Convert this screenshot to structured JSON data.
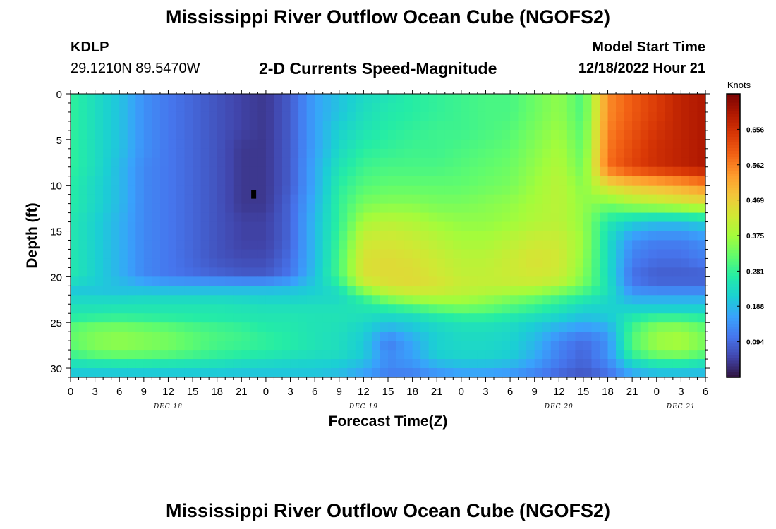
{
  "header": {
    "title": "Mississippi River Outflow Ocean Cube (NGOFS2)",
    "station_id": "KDLP",
    "station_coords": "29.1210N  89.5470W",
    "subtitle": "2-D Currents Speed-Magnitude",
    "model_start_label": "Model Start Time",
    "model_start_value": "12/18/2022 Hour 21"
  },
  "footer": {
    "title": "Mississippi River Outflow Ocean Cube (NGOFS2)"
  },
  "colors": {
    "colormap": [
      "#30123b",
      "#4145ab",
      "#4675ed",
      "#39a2fc",
      "#1bcfd4",
      "#24eca6",
      "#61fc6c",
      "#a4fc3b",
      "#d1e834",
      "#f3c63a",
      "#fe9b2d",
      "#f36315",
      "#d93806",
      "#b11901",
      "#7a0403"
    ],
    "marker": "#000000"
  },
  "chart_data": {
    "type": "heatmap",
    "xlabel": "Forecast Time(Z)",
    "ylabel": "Depth (ft)",
    "x_ticks": [
      "0",
      "3",
      "6",
      "9",
      "12",
      "15",
      "18",
      "21",
      "0",
      "3",
      "6",
      "9",
      "12",
      "15",
      "18",
      "21",
      "0",
      "3",
      "6",
      "9",
      "12",
      "15",
      "18",
      "21",
      "0",
      "3",
      "6"
    ],
    "date_labels": [
      {
        "text": "DEC 18",
        "at_hour": 12
      },
      {
        "text": "DEC 19",
        "at_hour": 36
      },
      {
        "text": "DEC 20",
        "at_hour": 60
      },
      {
        "text": "DEC 21",
        "at_hour": 75
      }
    ],
    "xlim": [
      0,
      78
    ],
    "y_ticks": [
      0,
      5,
      10,
      15,
      20,
      25,
      30
    ],
    "ylim": [
      0,
      31
    ],
    "colorbar": {
      "label": "Knots",
      "ticks": [
        0.094,
        0.188,
        0.281,
        0.375,
        0.469,
        0.562,
        0.656
      ],
      "range": [
        0,
        0.75
      ]
    },
    "marker": {
      "hour": 22.5,
      "depth": 11
    },
    "depth_levels": [
      0,
      2,
      4,
      6,
      8,
      10,
      12,
      14,
      16,
      18,
      20,
      21,
      22,
      23,
      24,
      25,
      26,
      27,
      28,
      29,
      30,
      31
    ],
    "hours": [
      0,
      3,
      6,
      9,
      12,
      15,
      18,
      21,
      24,
      27,
      30,
      33,
      36,
      39,
      42,
      45,
      48,
      51,
      54,
      57,
      60,
      63,
      66,
      69,
      72,
      75,
      78
    ],
    "values": [
      [
        0.28,
        0.24,
        0.2,
        0.14,
        0.11,
        0.09,
        0.07,
        0.05,
        0.04,
        0.08,
        0.16,
        0.2,
        0.23,
        0.25,
        0.27,
        0.28,
        0.29,
        0.3,
        0.3,
        0.33,
        0.36,
        0.3,
        0.55,
        0.6,
        0.64,
        0.68,
        0.7
      ],
      [
        0.28,
        0.24,
        0.2,
        0.14,
        0.11,
        0.09,
        0.07,
        0.05,
        0.04,
        0.08,
        0.16,
        0.2,
        0.24,
        0.26,
        0.27,
        0.28,
        0.29,
        0.3,
        0.3,
        0.33,
        0.36,
        0.3,
        0.55,
        0.6,
        0.64,
        0.68,
        0.7
      ],
      [
        0.28,
        0.24,
        0.2,
        0.14,
        0.11,
        0.09,
        0.07,
        0.05,
        0.04,
        0.08,
        0.16,
        0.22,
        0.25,
        0.27,
        0.28,
        0.29,
        0.29,
        0.3,
        0.31,
        0.34,
        0.37,
        0.31,
        0.56,
        0.61,
        0.65,
        0.68,
        0.7
      ],
      [
        0.28,
        0.24,
        0.2,
        0.14,
        0.11,
        0.09,
        0.07,
        0.04,
        0.04,
        0.08,
        0.16,
        0.23,
        0.27,
        0.28,
        0.29,
        0.29,
        0.3,
        0.31,
        0.32,
        0.35,
        0.38,
        0.32,
        0.57,
        0.62,
        0.66,
        0.68,
        0.7
      ],
      [
        0.28,
        0.24,
        0.19,
        0.13,
        0.11,
        0.09,
        0.07,
        0.04,
        0.04,
        0.08,
        0.17,
        0.25,
        0.29,
        0.3,
        0.3,
        0.3,
        0.31,
        0.32,
        0.33,
        0.36,
        0.39,
        0.33,
        0.58,
        0.63,
        0.66,
        0.68,
        0.7
      ],
      [
        0.27,
        0.23,
        0.19,
        0.13,
        0.11,
        0.09,
        0.07,
        0.04,
        0.04,
        0.08,
        0.17,
        0.27,
        0.31,
        0.32,
        0.32,
        0.32,
        0.32,
        0.33,
        0.34,
        0.37,
        0.4,
        0.35,
        0.45,
        0.48,
        0.5,
        0.52,
        0.55
      ],
      [
        0.27,
        0.23,
        0.19,
        0.13,
        0.11,
        0.09,
        0.07,
        0.04,
        0.04,
        0.09,
        0.18,
        0.28,
        0.34,
        0.35,
        0.35,
        0.34,
        0.34,
        0.35,
        0.36,
        0.38,
        0.4,
        0.36,
        0.34,
        0.38,
        0.4,
        0.42,
        0.44
      ],
      [
        0.26,
        0.22,
        0.18,
        0.13,
        0.11,
        0.09,
        0.07,
        0.05,
        0.05,
        0.09,
        0.19,
        0.28,
        0.38,
        0.4,
        0.39,
        0.37,
        0.36,
        0.36,
        0.37,
        0.39,
        0.4,
        0.36,
        0.26,
        0.22,
        0.2,
        0.2,
        0.22
      ],
      [
        0.26,
        0.22,
        0.18,
        0.13,
        0.11,
        0.09,
        0.07,
        0.05,
        0.05,
        0.09,
        0.19,
        0.29,
        0.42,
        0.43,
        0.42,
        0.4,
        0.38,
        0.38,
        0.4,
        0.42,
        0.42,
        0.37,
        0.24,
        0.14,
        0.12,
        0.12,
        0.14
      ],
      [
        0.26,
        0.22,
        0.18,
        0.13,
        0.11,
        0.09,
        0.07,
        0.06,
        0.06,
        0.1,
        0.19,
        0.3,
        0.44,
        0.45,
        0.44,
        0.42,
        0.4,
        0.4,
        0.42,
        0.44,
        0.43,
        0.36,
        0.24,
        0.12,
        0.1,
        0.1,
        0.12
      ],
      [
        0.26,
        0.22,
        0.18,
        0.13,
        0.11,
        0.1,
        0.09,
        0.08,
        0.08,
        0.11,
        0.2,
        0.3,
        0.44,
        0.45,
        0.45,
        0.43,
        0.41,
        0.41,
        0.42,
        0.43,
        0.42,
        0.35,
        0.24,
        0.1,
        0.08,
        0.08,
        0.08
      ],
      [
        0.22,
        0.21,
        0.2,
        0.19,
        0.18,
        0.18,
        0.18,
        0.18,
        0.18,
        0.19,
        0.21,
        0.26,
        0.4,
        0.44,
        0.45,
        0.44,
        0.42,
        0.41,
        0.41,
        0.41,
        0.39,
        0.33,
        0.25,
        0.12,
        0.1,
        0.1,
        0.1
      ],
      [
        0.2,
        0.2,
        0.2,
        0.21,
        0.21,
        0.21,
        0.21,
        0.21,
        0.21,
        0.21,
        0.22,
        0.23,
        0.3,
        0.38,
        0.4,
        0.4,
        0.39,
        0.38,
        0.36,
        0.34,
        0.31,
        0.28,
        0.24,
        0.16,
        0.16,
        0.16,
        0.16
      ],
      [
        0.26,
        0.26,
        0.26,
        0.26,
        0.26,
        0.26,
        0.26,
        0.25,
        0.24,
        0.24,
        0.24,
        0.24,
        0.26,
        0.3,
        0.33,
        0.35,
        0.36,
        0.34,
        0.32,
        0.3,
        0.27,
        0.24,
        0.22,
        0.2,
        0.2,
        0.2,
        0.2
      ],
      [
        0.24,
        0.24,
        0.25,
        0.25,
        0.25,
        0.25,
        0.25,
        0.25,
        0.25,
        0.25,
        0.25,
        0.25,
        0.25,
        0.24,
        0.25,
        0.28,
        0.3,
        0.3,
        0.28,
        0.26,
        0.24,
        0.21,
        0.22,
        0.24,
        0.24,
        0.24,
        0.24
      ],
      [
        0.3,
        0.32,
        0.32,
        0.31,
        0.3,
        0.29,
        0.28,
        0.27,
        0.26,
        0.26,
        0.25,
        0.25,
        0.23,
        0.21,
        0.22,
        0.24,
        0.25,
        0.25,
        0.24,
        0.22,
        0.2,
        0.18,
        0.19,
        0.28,
        0.33,
        0.33,
        0.3
      ],
      [
        0.32,
        0.34,
        0.35,
        0.34,
        0.33,
        0.31,
        0.3,
        0.29,
        0.27,
        0.26,
        0.25,
        0.24,
        0.22,
        0.16,
        0.19,
        0.22,
        0.24,
        0.24,
        0.23,
        0.2,
        0.16,
        0.13,
        0.16,
        0.3,
        0.36,
        0.37,
        0.33
      ],
      [
        0.32,
        0.35,
        0.36,
        0.35,
        0.34,
        0.32,
        0.3,
        0.29,
        0.28,
        0.27,
        0.25,
        0.24,
        0.21,
        0.12,
        0.17,
        0.22,
        0.23,
        0.23,
        0.22,
        0.19,
        0.13,
        0.1,
        0.14,
        0.31,
        0.37,
        0.38,
        0.34
      ],
      [
        0.31,
        0.34,
        0.35,
        0.34,
        0.33,
        0.31,
        0.29,
        0.28,
        0.27,
        0.26,
        0.25,
        0.24,
        0.21,
        0.12,
        0.16,
        0.22,
        0.23,
        0.23,
        0.22,
        0.18,
        0.12,
        0.09,
        0.14,
        0.3,
        0.36,
        0.37,
        0.33
      ],
      [
        0.27,
        0.29,
        0.3,
        0.3,
        0.29,
        0.28,
        0.27,
        0.26,
        0.25,
        0.24,
        0.23,
        0.23,
        0.21,
        0.14,
        0.16,
        0.21,
        0.22,
        0.22,
        0.21,
        0.17,
        0.12,
        0.09,
        0.14,
        0.26,
        0.3,
        0.31,
        0.28
      ],
      [
        0.22,
        0.22,
        0.22,
        0.22,
        0.22,
        0.22,
        0.22,
        0.21,
        0.21,
        0.21,
        0.21,
        0.2,
        0.17,
        0.12,
        0.13,
        0.16,
        0.18,
        0.18,
        0.17,
        0.14,
        0.1,
        0.08,
        0.11,
        0.19,
        0.22,
        0.22,
        0.21
      ],
      [
        0.2,
        0.2,
        0.2,
        0.2,
        0.2,
        0.2,
        0.2,
        0.2,
        0.2,
        0.2,
        0.2,
        0.19,
        0.16,
        0.12,
        0.12,
        0.14,
        0.15,
        0.15,
        0.14,
        0.12,
        0.09,
        0.07,
        0.1,
        0.16,
        0.18,
        0.18,
        0.18
      ]
    ]
  }
}
